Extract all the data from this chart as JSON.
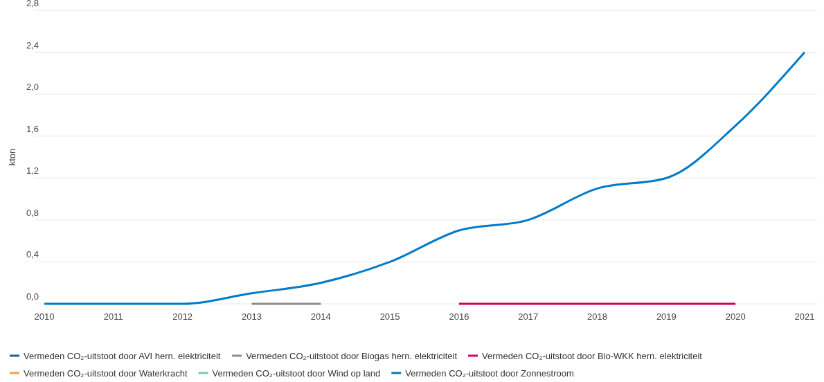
{
  "chart_data": {
    "type": "line",
    "ylabel": "kton",
    "categories": [
      "2010",
      "2011",
      "2012",
      "2013",
      "2014",
      "2015",
      "2016",
      "2017",
      "2018",
      "2019",
      "2020",
      "2021"
    ],
    "ylim": [
      0,
      2.8
    ],
    "yticks": [
      {
        "value": 0,
        "label": "0,0"
      },
      {
        "value": 0.4,
        "label": "0,4"
      },
      {
        "value": 0.8,
        "label": "0,8"
      },
      {
        "value": 1.2,
        "label": "1,2"
      },
      {
        "value": 1.6,
        "label": "1,6"
      },
      {
        "value": 2.0,
        "label": "2,0"
      },
      {
        "value": 2.4,
        "label": "2,4"
      },
      {
        "value": 2.8,
        "label": "2,8"
      }
    ],
    "grid": "y",
    "legend": "bottom",
    "marker": "none",
    "line_style": "solid",
    "series": [
      {
        "name": "Vermeden CO₂-uitstoot door AVI hern. elektriciteit",
        "color": "#1a5f96",
        "values": [
          null,
          null,
          null,
          null,
          null,
          null,
          null,
          null,
          null,
          null,
          null,
          null
        ]
      },
      {
        "name": "Vermeden CO₂-uitstoot door Biogas hern. elektriciteit",
        "color": "#8c8c8c",
        "values": [
          null,
          null,
          null,
          0,
          0,
          null,
          null,
          null,
          null,
          null,
          null,
          null
        ]
      },
      {
        "name": "Vermeden CO₂-uitstoot door Bio-WKK hern. elektriciteit",
        "color": "#d0005f",
        "values": [
          null,
          null,
          null,
          null,
          null,
          null,
          0,
          0,
          0,
          0,
          0,
          null
        ]
      },
      {
        "name": "Vermeden CO₂-uitstoot door Waterkracht",
        "color": "#f0a050",
        "values": [
          null,
          null,
          null,
          null,
          null,
          null,
          null,
          null,
          null,
          null,
          null,
          null
        ]
      },
      {
        "name": "Vermeden CO₂-uitstoot door Wind op land",
        "color": "#6fd0a0",
        "values": [
          null,
          null,
          null,
          null,
          null,
          null,
          null,
          null,
          null,
          null,
          null,
          null
        ]
      },
      {
        "name": "Vermeden CO₂-uitstoot door Zonnestroom",
        "color": "#007bc7",
        "values": [
          0,
          0,
          0,
          0.1,
          0.2,
          0.4,
          0.7,
          0.8,
          1.1,
          1.2,
          1.7,
          2.4
        ]
      }
    ]
  }
}
